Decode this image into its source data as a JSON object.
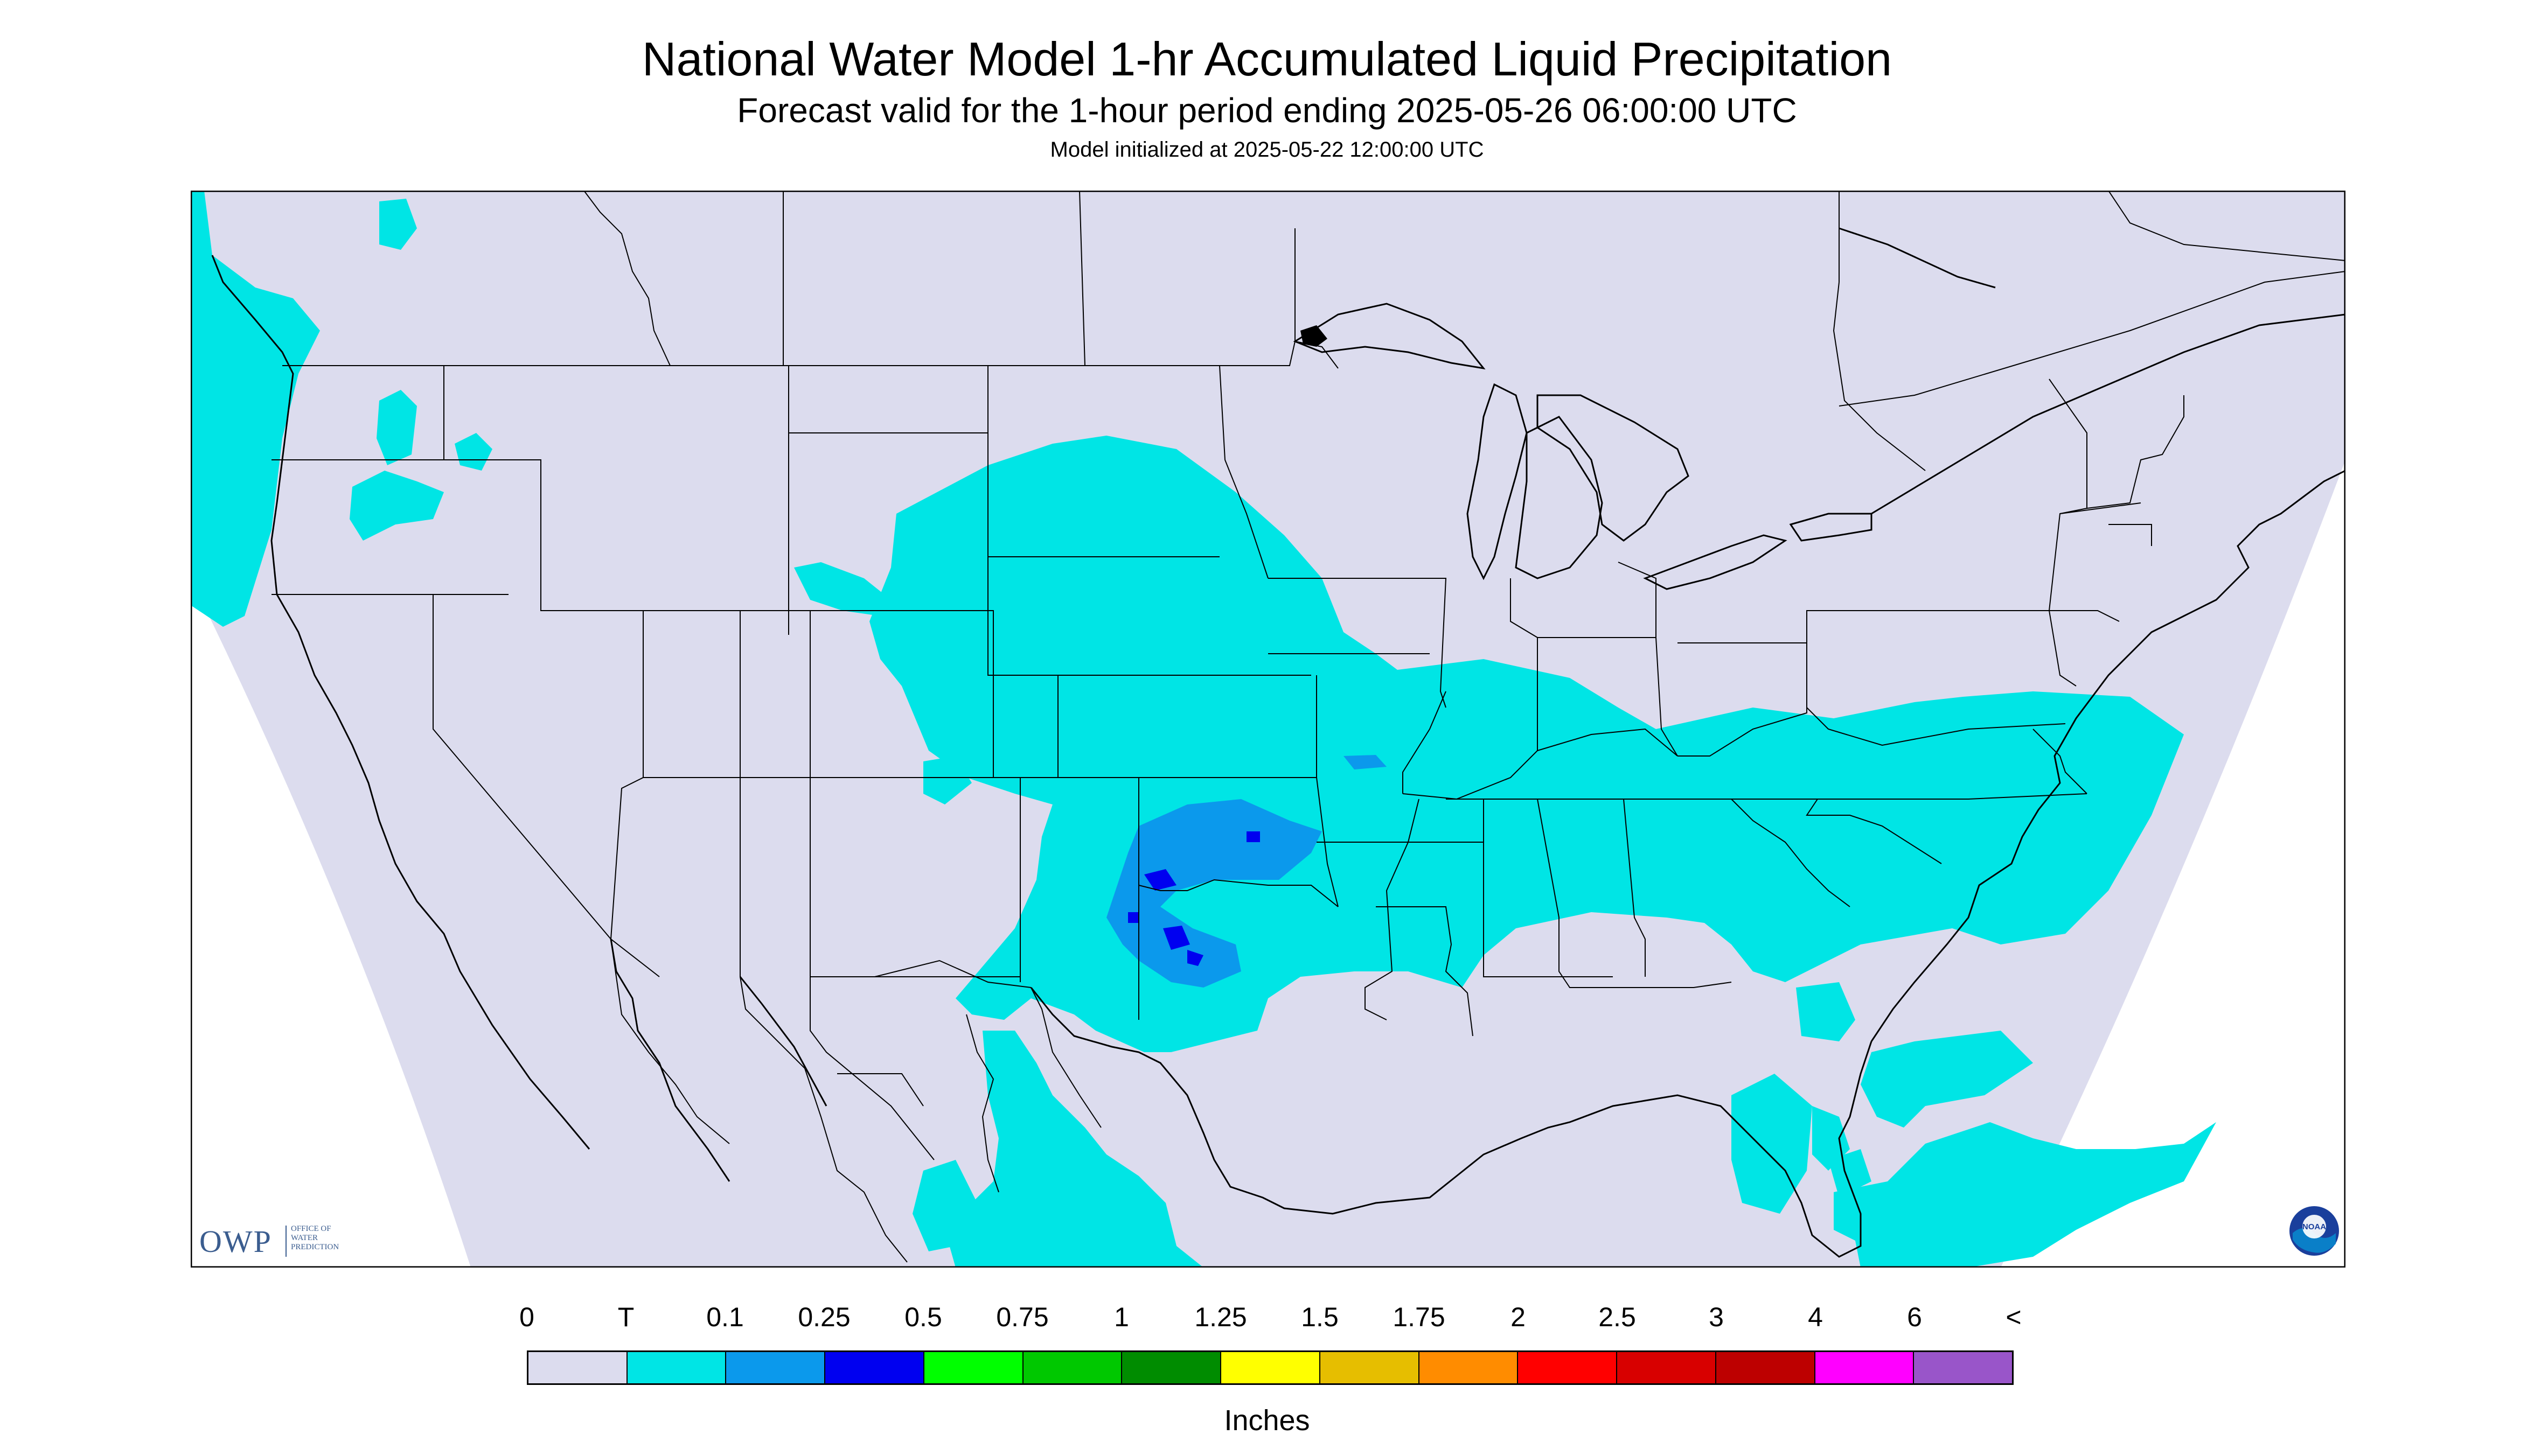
{
  "header": {
    "title": "National Water Model 1-hr Accumulated Liquid Precipitation",
    "subtitle": "Forecast valid for the 1-hour period ending 2025-05-26 06:00:00 UTC",
    "init": "Model initialized at 2025-05-22 12:00:00 UTC"
  },
  "map": {
    "region": "Continental United States",
    "background_color": "#dcdcee",
    "outside_domain_color": "#ffffff",
    "boundary_color": "#000000",
    "precip_areas": [
      {
        "category": "T",
        "color": "#00e5e5"
      },
      {
        "category": "0.1",
        "color": "#0b99ec"
      },
      {
        "category": "0.25",
        "color": "#0000f0"
      }
    ]
  },
  "logos": {
    "owp": {
      "letters": "OWP",
      "line1": "OFFICE OF",
      "line2": "WATER",
      "line3": "PREDICTION",
      "icon": "owp-logo"
    },
    "noaa": {
      "text": "NOAA",
      "icon": "noaa-logo"
    }
  },
  "legend": {
    "labels": [
      "0",
      "T",
      "0.1",
      "0.25",
      "0.5",
      "0.75",
      "1",
      "1.25",
      "1.5",
      "1.75",
      "2",
      "2.5",
      "3",
      "4",
      "6",
      "<"
    ],
    "colors": [
      "#dcdcee",
      "#00e5e5",
      "#0b99ec",
      "#0000f0",
      "#00ff00",
      "#00c800",
      "#008c00",
      "#ffff00",
      "#e6be00",
      "#ff8c00",
      "#ff0000",
      "#d80000",
      "#bd0000",
      "#ff00ff",
      "#9955c9"
    ],
    "units": "Inches"
  }
}
